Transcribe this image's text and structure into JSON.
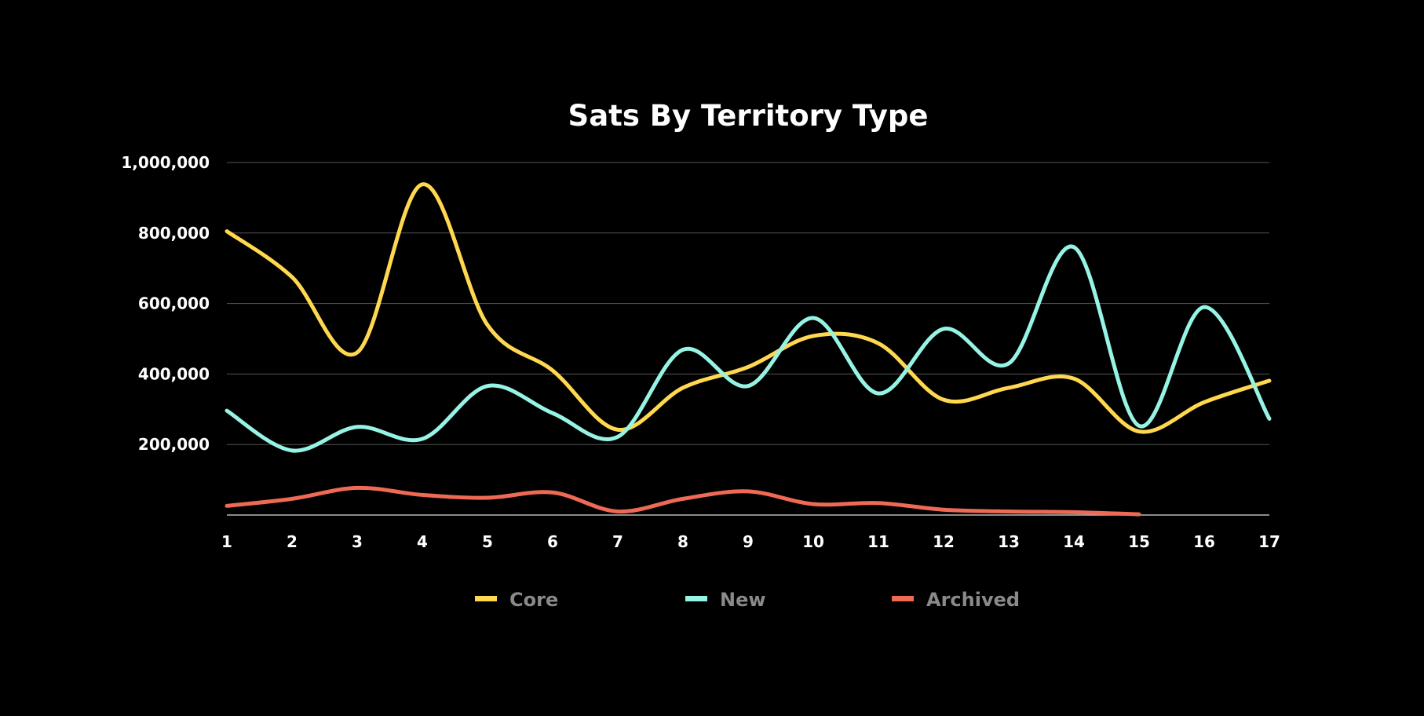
{
  "chart_data": {
    "type": "line",
    "title": "Sats By Territory Type",
    "xlabel": "",
    "ylabel": "",
    "x": [
      1,
      2,
      3,
      4,
      5,
      6,
      7,
      8,
      9,
      10,
      11,
      12,
      13,
      14,
      15,
      16,
      17
    ],
    "x_tick_labels": [
      "1",
      "2",
      "3",
      "4",
      "5",
      "6",
      "7",
      "8",
      "9",
      "10",
      "11",
      "12",
      "13",
      "14",
      "15",
      "16",
      "17"
    ],
    "ylim": [
      0,
      1000000
    ],
    "y_ticks": [
      200000,
      400000,
      600000,
      800000,
      1000000
    ],
    "y_tick_labels": [
      "200,000",
      "400,000",
      "600,000",
      "800,000",
      "1,000,000"
    ],
    "grid": true,
    "legend_position": "bottom",
    "series": [
      {
        "name": "Core",
        "color": "#FFD84F",
        "values": [
          805000,
          675000,
          461000,
          938000,
          539000,
          410000,
          242000,
          361000,
          420000,
          508000,
          487000,
          327000,
          361000,
          387000,
          237000,
          320000,
          381000
        ]
      },
      {
        "name": "New",
        "color": "#97F4E4",
        "values": [
          296000,
          183000,
          250000,
          216000,
          366000,
          289000,
          222000,
          469000,
          366000,
          559000,
          345000,
          528000,
          430000,
          760000,
          253000,
          590000,
          273000
        ]
      },
      {
        "name": "Archived",
        "color": "#EE6A55",
        "values": [
          26000,
          46000,
          77000,
          57000,
          49000,
          64000,
          10000,
          46000,
          67000,
          31000,
          34000,
          15000,
          10000,
          8000,
          2000,
          null,
          null
        ]
      }
    ]
  }
}
